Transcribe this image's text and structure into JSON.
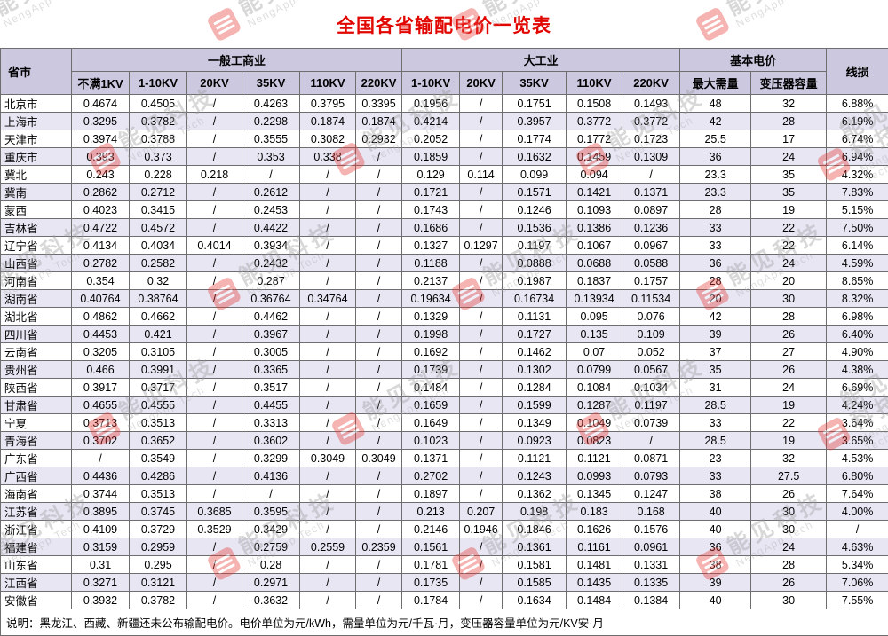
{
  "title": "全国各省输配电价一览表",
  "colors": {
    "title_red": "#e10600",
    "header_bg": "#cbc8df",
    "row_alt_bg": "#e8e6f3",
    "border_gray": "#6e6e6e",
    "watermark_red": "#e53935"
  },
  "watermark": {
    "cn": "能见科技",
    "en": "NengApp Tech"
  },
  "table": {
    "header": {
      "province": "省市",
      "line_loss": "线损",
      "groups": [
        {
          "label": "一般工商业",
          "cols": [
            "不满1KV",
            "1-10KV",
            "20KV",
            "35KV",
            "110KV",
            "220KV"
          ]
        },
        {
          "label": "大工业",
          "cols": [
            "1-10KV",
            "20KV",
            "35KV",
            "110KV",
            "220KV"
          ]
        },
        {
          "label": "基本电价",
          "cols": [
            "最大需量",
            "变压器容量"
          ]
        }
      ]
    },
    "rows": [
      {
        "province": "北京市",
        "values": [
          "0.4674",
          "0.4505",
          "/",
          "0.4263",
          "0.3795",
          "0.3395",
          "0.1956",
          "/",
          "0.1751",
          "0.1508",
          "0.1493",
          "48",
          "32",
          "6.88%"
        ]
      },
      {
        "province": "上海市",
        "values": [
          "0.3295",
          "0.3782",
          "/",
          "0.2298",
          "0.1874",
          "0.1874",
          "0.4214",
          "/",
          "0.3957",
          "0.3772",
          "0.3772",
          "42",
          "28",
          "6.19%"
        ]
      },
      {
        "province": "天津市",
        "values": [
          "0.3974",
          "0.3788",
          "/",
          "0.3555",
          "0.3082",
          "0.2932",
          "0.2052",
          "/",
          "0.1774",
          "0.1772",
          "0.1723",
          "25.5",
          "17",
          "6.74%"
        ]
      },
      {
        "province": "重庆市",
        "values": [
          "0.393",
          "0.373",
          "/",
          "0.353",
          "0.338",
          "/",
          "0.1859",
          "/",
          "0.1632",
          "0.1459",
          "0.1309",
          "36",
          "24",
          "6.94%"
        ]
      },
      {
        "province": "冀北",
        "values": [
          "0.243",
          "0.228",
          "0.218",
          "/",
          "/",
          "/",
          "0.129",
          "0.114",
          "0.099",
          "0.094",
          "/",
          "23.3",
          "35",
          "4.32%"
        ]
      },
      {
        "province": "冀南",
        "values": [
          "0.2862",
          "0.2712",
          "/",
          "0.2612",
          "/",
          "/",
          "0.1721",
          "/",
          "0.1571",
          "0.1421",
          "0.1371",
          "23.3",
          "35",
          "7.83%"
        ]
      },
      {
        "province": "蒙西",
        "values": [
          "0.4023",
          "0.3415",
          "/",
          "0.2453",
          "/",
          "/",
          "0.1743",
          "/",
          "0.1246",
          "0.1093",
          "0.0897",
          "28",
          "19",
          "5.15%"
        ]
      },
      {
        "province": "吉林省",
        "values": [
          "0.4722",
          "0.4572",
          "/",
          "0.4422",
          "/",
          "/",
          "0.1686",
          "/",
          "0.1536",
          "0.1386",
          "0.1236",
          "33",
          "22",
          "7.50%"
        ]
      },
      {
        "province": "辽宁省",
        "values": [
          "0.4134",
          "0.4034",
          "0.4014",
          "0.3934",
          "/",
          "/",
          "0.1327",
          "0.1297",
          "0.1197",
          "0.1067",
          "0.0967",
          "33",
          "22",
          "6.14%"
        ]
      },
      {
        "province": "山西省",
        "values": [
          "0.2782",
          "0.2582",
          "/",
          "0.2432",
          "/",
          "/",
          "0.1188",
          "/",
          "0.0888",
          "0.0688",
          "0.0588",
          "36",
          "24",
          "4.59%"
        ]
      },
      {
        "province": "河南省",
        "values": [
          "0.354",
          "0.32",
          "/",
          "0.287",
          "/",
          "/",
          "0.2137",
          "/",
          "0.1987",
          "0.1837",
          "0.1757",
          "28",
          "20",
          "8.65%"
        ]
      },
      {
        "province": "湖南省",
        "values": [
          "0.40764",
          "0.38764",
          "/",
          "0.36764",
          "0.34764",
          "/",
          "0.19634",
          "/",
          "0.16734",
          "0.13934",
          "0.11534",
          "20",
          "30",
          "8.32%"
        ]
      },
      {
        "province": "湖北省",
        "values": [
          "0.4862",
          "0.4662",
          "/",
          "0.4462",
          "/",
          "/",
          "0.1329",
          "/",
          "0.1131",
          "0.095",
          "0.076",
          "42",
          "28",
          "6.98%"
        ]
      },
      {
        "province": "四川省",
        "values": [
          "0.4453",
          "0.421",
          "/",
          "0.3967",
          "/",
          "/",
          "0.1998",
          "/",
          "0.1727",
          "0.135",
          "0.109",
          "39",
          "26",
          "6.40%"
        ]
      },
      {
        "province": "云南省",
        "values": [
          "0.3205",
          "0.3105",
          "/",
          "0.3005",
          "/",
          "/",
          "0.1692",
          "/",
          "0.1462",
          "0.07",
          "0.052",
          "37",
          "27",
          "4.90%"
        ]
      },
      {
        "province": "贵州省",
        "values": [
          "0.466",
          "0.3991",
          "/",
          "0.3365",
          "/",
          "/",
          "0.1739",
          "/",
          "0.1302",
          "0.0799",
          "0.0567",
          "35",
          "26",
          "4.38%"
        ]
      },
      {
        "province": "陕西省",
        "values": [
          "0.3917",
          "0.3717",
          "/",
          "0.3517",
          "/",
          "/",
          "0.1484",
          "/",
          "0.1284",
          "0.1084",
          "0.1034",
          "31",
          "24",
          "6.69%"
        ]
      },
      {
        "province": "甘肃省",
        "values": [
          "0.4655",
          "0.4555",
          "/",
          "0.4455",
          "/",
          "/",
          "0.1659",
          "/",
          "0.1599",
          "0.1287",
          "0.1197",
          "28.5",
          "19",
          "4.24%"
        ]
      },
      {
        "province": "宁夏",
        "values": [
          "0.3713",
          "0.3513",
          "/",
          "0.3313",
          "/",
          "/",
          "0.1649",
          "/",
          "0.1349",
          "0.1049",
          "0.0739",
          "33",
          "22",
          "3.64%"
        ]
      },
      {
        "province": "青海省",
        "values": [
          "0.3702",
          "0.3652",
          "/",
          "0.3602",
          "/",
          "/",
          "0.1023",
          "/",
          "0.0923",
          "0.0823",
          "/",
          "28.5",
          "19",
          "3.65%"
        ]
      },
      {
        "province": "广东省",
        "values": [
          "/",
          "0.3549",
          "/",
          "0.3299",
          "0.3049",
          "0.3049",
          "0.1371",
          "/",
          "0.1121",
          "0.1121",
          "0.0871",
          "23",
          "32",
          "4.53%"
        ]
      },
      {
        "province": "广西省",
        "values": [
          "0.4436",
          "0.4286",
          "/",
          "0.4136",
          "/",
          "/",
          "0.2702",
          "/",
          "0.1243",
          "0.0993",
          "0.0793",
          "33",
          "27.5",
          "6.80%"
        ]
      },
      {
        "province": "海南省",
        "values": [
          "0.3744",
          "0.3513",
          "/",
          "/",
          "/",
          "/",
          "0.1897",
          "/",
          "0.1362",
          "0.1345",
          "0.1247",
          "38",
          "26",
          "7.64%"
        ]
      },
      {
        "province": "江苏省",
        "values": [
          "0.3895",
          "0.3745",
          "0.3685",
          "0.3595",
          "/",
          "/",
          "0.213",
          "0.207",
          "0.198",
          "0.183",
          "0.168",
          "40",
          "30",
          "4.00%"
        ]
      },
      {
        "province": "浙江省",
        "values": [
          "0.4109",
          "0.3729",
          "0.3529",
          "0.3429",
          "/",
          "/",
          "0.2146",
          "0.1946",
          "0.1846",
          "0.1626",
          "0.1576",
          "40",
          "30",
          "/"
        ]
      },
      {
        "province": "福建省",
        "values": [
          "0.3159",
          "0.2959",
          "/",
          "0.2759",
          "0.2559",
          "0.2359",
          "0.1561",
          "/",
          "0.1361",
          "0.1161",
          "0.0961",
          "36",
          "24",
          "4.63%"
        ]
      },
      {
        "province": "山东省",
        "values": [
          "0.31",
          "0.295",
          "/",
          "0.28",
          "/",
          "/",
          "0.1781",
          "/",
          "0.1581",
          "0.1481",
          "0.1331",
          "38",
          "28",
          "5.34%"
        ]
      },
      {
        "province": "江西省",
        "values": [
          "0.3271",
          "0.3121",
          "/",
          "0.2971",
          "/",
          "/",
          "0.1735",
          "/",
          "0.1585",
          "0.1435",
          "0.1335",
          "39",
          "26",
          "7.06%"
        ]
      },
      {
        "province": "安徽省",
        "values": [
          "0.3932",
          "0.3782",
          "/",
          "0.3632",
          "/",
          "/",
          "0.1784",
          "/",
          "0.1634",
          "0.1484",
          "0.1384",
          "40",
          "30",
          "7.55%"
        ]
      }
    ]
  },
  "footnote": "说明：黑龙江、西藏、新疆还未公布输配电价。电价单位为元/kWh，需量单位为元/千瓦·月，变压器容量单位为元/KV安·月"
}
